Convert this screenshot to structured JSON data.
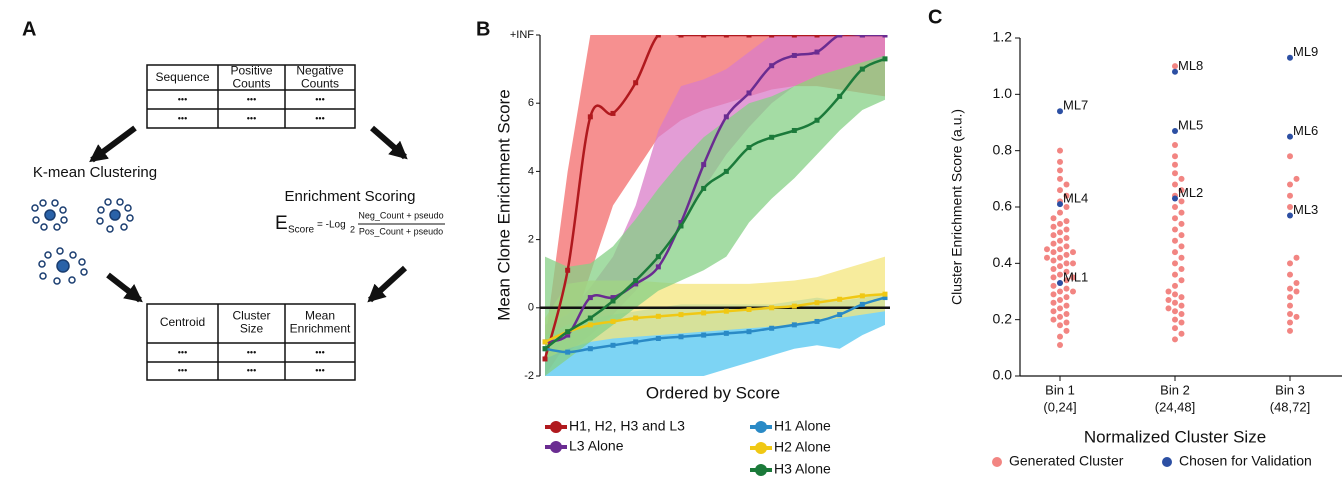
{
  "panels": {
    "a": {
      "label": "A",
      "table_top": {
        "headers": [
          "Sequence",
          "Positive Counts",
          "Negative Counts"
        ],
        "rows": [
          [
            "•••",
            "•••",
            "•••"
          ],
          [
            "•••",
            "•••",
            "•••"
          ]
        ]
      },
      "clustering": "K-mean Clustering",
      "scoring": {
        "title": "Enrichment Scoring",
        "lhs": "E",
        "lhs_sub": "Score",
        "op": "= -Log",
        "op_sub": "2",
        "numerator": "Neg_Count + pseudo",
        "denominator": "Pos_Count + pseudo"
      },
      "table_bottom": {
        "headers": [
          "Centroid",
          "Cluster Size",
          "Mean Enrichment"
        ],
        "rows": [
          [
            "•••",
            "•••",
            "•••"
          ],
          [
            "•••",
            "•••",
            "•••"
          ]
        ]
      }
    }
  },
  "chart_data": [
    {
      "type": "line",
      "panel_label": "B",
      "x_label": "Ordered by Score",
      "y_label": "Mean Clone Enrichment Score",
      "categories": [
        null,
        null,
        null,
        null,
        null,
        null,
        null,
        null,
        null,
        null,
        null,
        null,
        null,
        null,
        null,
        null
      ],
      "ylim": [
        -2,
        8
      ],
      "yticks": [
        -2,
        0,
        2,
        4,
        6,
        {
          "value": 8,
          "label": "+INF"
        }
      ],
      "reference_line": 0,
      "series": [
        {
          "name": "H1, H2, H3 and L3",
          "color": "#b0191e",
          "band_color": "#f36b6b",
          "values": [
            -1.5,
            1.1,
            5.6,
            5.7,
            6.6,
            8,
            8,
            8,
            8,
            8,
            8,
            8,
            8,
            8,
            8,
            8
          ],
          "lower": [
            -2,
            -1,
            1,
            3,
            4,
            5,
            5.5,
            5.8,
            6,
            6.2,
            6.4,
            6.5,
            6.5,
            6.4,
            6.3,
            6.2
          ],
          "upper": [
            -1,
            4,
            8,
            8,
            8,
            8,
            8,
            8,
            8,
            8,
            8,
            8,
            8,
            8,
            8,
            8
          ]
        },
        {
          "name": "L3 Alone",
          "color": "#6a2c91",
          "band_color": "#d97cc8",
          "values": [
            -1,
            -0.8,
            0.3,
            0.3,
            0.7,
            1.2,
            2.5,
            4.2,
            5.6,
            6.3,
            7.1,
            7.4,
            7.5,
            8,
            8,
            8
          ],
          "lower": [
            -1.5,
            -1.3,
            -0.8,
            -0.2,
            0.5,
            1.3,
            2.5,
            3.5,
            4.5,
            5.3,
            6,
            6.5,
            6.8,
            7,
            7.2,
            7.3
          ],
          "upper": [
            -0.5,
            -0.2,
            0.6,
            1.5,
            3,
            5.2,
            6.5,
            6.7,
            7,
            7.5,
            8,
            8,
            8,
            8,
            8,
            8
          ]
        },
        {
          "name": "H1 Alone",
          "color": "#2a8ac6",
          "band_color": "#52c6f0",
          "values": [
            -1.2,
            -1.3,
            -1.2,
            -1.1,
            -1,
            -0.9,
            -0.85,
            -0.8,
            -0.75,
            -0.7,
            -0.6,
            -0.5,
            -0.4,
            -0.2,
            0.1,
            0.3
          ],
          "lower": [
            -2,
            -2,
            -2,
            -2,
            -2,
            -2,
            -2,
            -2,
            -1.8,
            -1.6,
            -1.4,
            -1.2,
            -1.1,
            -1.2,
            -0.8,
            -0.5
          ],
          "upper": [
            -0.8,
            -0.5,
            -0.3,
            -0.2,
            -0.1,
            0,
            0.1,
            0.1,
            0.1,
            0.1,
            0.1,
            0.2,
            0.3,
            0.2,
            0.3,
            0.4
          ]
        },
        {
          "name": "H2 Alone",
          "color": "#f0c814",
          "band_color": "#f4e67c",
          "values": [
            -1,
            -0.7,
            -0.5,
            -0.4,
            -0.3,
            -0.25,
            -0.2,
            -0.15,
            -0.1,
            -0.05,
            0,
            0.05,
            0.15,
            0.25,
            0.35,
            0.4
          ],
          "lower": [
            -1.5,
            -1.2,
            -1,
            -0.9,
            -0.85,
            -0.8,
            -0.75,
            -0.7,
            -0.65,
            -0.6,
            -0.55,
            -0.5,
            -0.4,
            -0.3,
            -0.2,
            -0.1
          ],
          "upper": [
            -0.3,
            0.7,
            0.8,
            0.8,
            0.8,
            0.75,
            0.7,
            0.7,
            0.7,
            0.7,
            0.75,
            0.8,
            0.9,
            1.1,
            1.3,
            1.5
          ]
        },
        {
          "name": "H3 Alone",
          "color": "#1b7a3a",
          "band_color": "#86d086",
          "values": [
            -1.2,
            -0.7,
            -0.3,
            0.2,
            0.8,
            1.5,
            2.4,
            3.5,
            4,
            4.7,
            5,
            5.2,
            5.5,
            6.2,
            7,
            7.3
          ],
          "lower": [
            -2,
            -1.5,
            -1,
            -0.5,
            0,
            0.5,
            0.8,
            1.1,
            1.5,
            2.5,
            3.2,
            3.8,
            4.5,
            5.2,
            5.8,
            6.1
          ],
          "upper": [
            1.5,
            1.2,
            1.3,
            1.8,
            2.6,
            3.5,
            4.3,
            5,
            5.5,
            6,
            6.2,
            6.5,
            6.8,
            7,
            7.2,
            7.4
          ]
        }
      ]
    },
    {
      "type": "swarm",
      "panel_label": "C",
      "x_label": "Normalized Cluster Size",
      "y_label": "Cluster Enrichment Score (a.u.)",
      "categories": [
        "Bin 1",
        "Bin 2",
        "Bin 3"
      ],
      "category_ranges": [
        "(0,24]",
        "(24,48]",
        "(48,72]"
      ],
      "ylim": [
        0,
        1.2
      ],
      "yticks": [
        {
          "value": 0,
          "label": "0.0"
        },
        0.2,
        0.4,
        0.6,
        0.8,
        {
          "value": 1,
          "label": "1.0"
        },
        1.2
      ],
      "series": [
        {
          "name": "Generated Cluster",
          "color": "#f28582",
          "values": [
            [
              0.11,
              0.14,
              0.16,
              0.18,
              0.19,
              0.2,
              0.21,
              0.22,
              0.23,
              0.24,
              0.25,
              0.26,
              0.27,
              0.28,
              0.29,
              0.3,
              0.3,
              0.31,
              0.32,
              0.33,
              0.34,
              0.35,
              0.35,
              0.36,
              0.37,
              0.38,
              0.39,
              0.4,
              0.4,
              0.41,
              0.42,
              0.42,
              0.43,
              0.44,
              0.44,
              0.45,
              0.45,
              0.46,
              0.47,
              0.48,
              0.49,
              0.5,
              0.51,
              0.52,
              0.53,
              0.54,
              0.55,
              0.56,
              0.58,
              0.6,
              0.62,
              0.64,
              0.66,
              0.68,
              0.7,
              0.73,
              0.76,
              0.8
            ],
            [
              0.13,
              0.15,
              0.17,
              0.19,
              0.2,
              0.22,
              0.23,
              0.24,
              0.25,
              0.26,
              0.27,
              0.28,
              0.29,
              0.3,
              0.32,
              0.34,
              0.36,
              0.38,
              0.4,
              0.42,
              0.44,
              0.46,
              0.48,
              0.5,
              0.52,
              0.54,
              0.56,
              0.58,
              0.6,
              0.62,
              0.64,
              0.66,
              0.68,
              0.7,
              0.72,
              0.75,
              0.78,
              0.82,
              1.1
            ],
            [
              0.16,
              0.19,
              0.21,
              0.22,
              0.25,
              0.28,
              0.3,
              0.31,
              0.33,
              0.36,
              0.4,
              0.42,
              0.6,
              0.64,
              0.68,
              0.7,
              0.78
            ]
          ]
        },
        {
          "name": "Chosen for Validation",
          "color": "#2c4fa3",
          "values": [
            [
              0.33,
              0.61,
              0.94
            ],
            [
              0.63,
              0.87,
              1.08
            ],
            [
              0.57,
              0.85,
              1.13
            ]
          ],
          "point_labels": [
            [
              "ML1",
              "ML4",
              "ML7"
            ],
            [
              "ML2",
              "ML5",
              "ML8"
            ],
            [
              "ML3",
              "ML6",
              "ML9"
            ]
          ]
        }
      ]
    }
  ]
}
